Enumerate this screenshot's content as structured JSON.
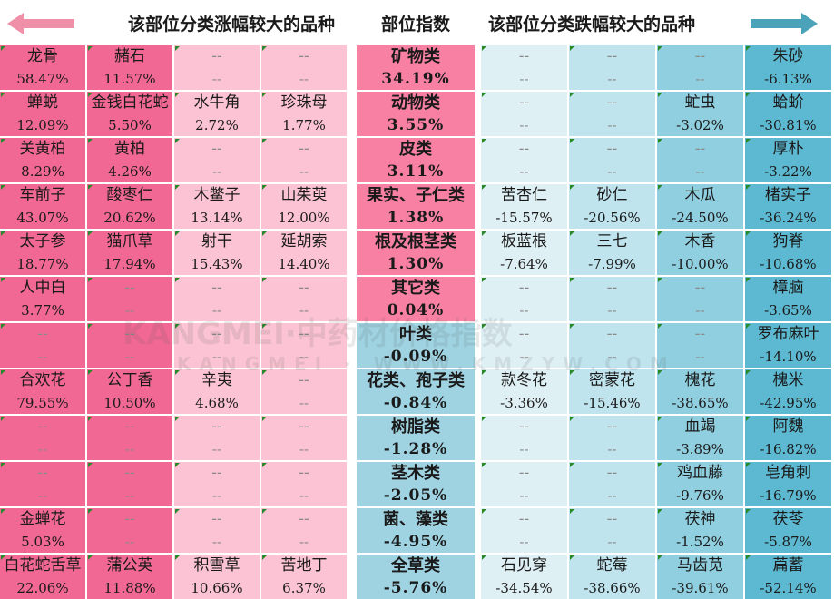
{
  "header": {
    "rise_title": "该部位分类涨幅较大的品种",
    "index_title": "部位指数",
    "fall_title": "该部位分类跌幅较大的品种",
    "rise_arrow_color": "#f08fa8",
    "fall_arrow_color": "#4aa3b8"
  },
  "colors": {
    "rise_dark": "#f26894",
    "rise_light": "#fbc3d3",
    "index_rise": "#f880a3",
    "index_fall": "#9fd3e2",
    "fall_light": "#dff0f5",
    "fall_mid": "#bfe4ee",
    "fall_deep": "#8fcfdf",
    "fall_dark": "#5cb9d1"
  },
  "rows": [
    {
      "index": {
        "name": "矿物类",
        "value": "34.19%"
      },
      "rise": [
        {
          "name": "龙骨",
          "value": "58.47%"
        },
        {
          "name": "赭石",
          "value": "11.57%"
        },
        {
          "name": "--",
          "value": "--"
        },
        {
          "name": "--",
          "value": "--"
        }
      ],
      "fall": [
        {
          "name": "--",
          "value": "--"
        },
        {
          "name": "--",
          "value": "--"
        },
        {
          "name": "--",
          "value": "--"
        },
        {
          "name": "朱砂",
          "value": "-6.13%"
        }
      ]
    },
    {
      "index": {
        "name": "动物类",
        "value": "3.55%"
      },
      "rise": [
        {
          "name": "蝉蜕",
          "value": "12.09%"
        },
        {
          "name": "金钱白花蛇",
          "value": "5.50%"
        },
        {
          "name": "水牛角",
          "value": "2.72%"
        },
        {
          "name": "珍珠母",
          "value": "1.77%"
        }
      ],
      "fall": [
        {
          "name": "--",
          "value": "--"
        },
        {
          "name": "--",
          "value": "--"
        },
        {
          "name": "虻虫",
          "value": "-3.02%"
        },
        {
          "name": "蛤蚧",
          "value": "-30.81%"
        }
      ]
    },
    {
      "index": {
        "name": "皮类",
        "value": "3.11%"
      },
      "rise": [
        {
          "name": "关黄柏",
          "value": "8.29%"
        },
        {
          "name": "黄柏",
          "value": "4.26%"
        },
        {
          "name": "--",
          "value": "--"
        },
        {
          "name": "--",
          "value": "--"
        }
      ],
      "fall": [
        {
          "name": "--",
          "value": "--"
        },
        {
          "name": "--",
          "value": "--"
        },
        {
          "name": "--",
          "value": "--"
        },
        {
          "name": "厚朴",
          "value": "-3.22%"
        }
      ]
    },
    {
      "index": {
        "name": "果实、子仁类",
        "value": "1.38%"
      },
      "rise": [
        {
          "name": "车前子",
          "value": "43.07%"
        },
        {
          "name": "酸枣仁",
          "value": "20.62%"
        },
        {
          "name": "木鳖子",
          "value": "13.14%"
        },
        {
          "name": "山茱萸",
          "value": "12.00%"
        }
      ],
      "fall": [
        {
          "name": "苦杏仁",
          "value": "-15.57%"
        },
        {
          "name": "砂仁",
          "value": "-20.56%"
        },
        {
          "name": "木瓜",
          "value": "-24.50%"
        },
        {
          "name": "楮实子",
          "value": "-36.24%"
        }
      ]
    },
    {
      "index": {
        "name": "根及根茎类",
        "value": "1.30%"
      },
      "rise": [
        {
          "name": "太子参",
          "value": "18.77%"
        },
        {
          "name": "猫爪草",
          "value": "17.94%"
        },
        {
          "name": "射干",
          "value": "15.43%"
        },
        {
          "name": "延胡索",
          "value": "14.40%"
        }
      ],
      "fall": [
        {
          "name": "板蓝根",
          "value": "-7.64%"
        },
        {
          "name": "三七",
          "value": "-7.99%"
        },
        {
          "name": "木香",
          "value": "-10.00%"
        },
        {
          "name": "狗脊",
          "value": "-10.68%"
        }
      ]
    },
    {
      "index": {
        "name": "其它类",
        "value": "0.04%"
      },
      "rise": [
        {
          "name": "人中白",
          "value": "3.77%"
        },
        {
          "name": "--",
          "value": "--"
        },
        {
          "name": "--",
          "value": "--"
        },
        {
          "name": "--",
          "value": "--"
        }
      ],
      "fall": [
        {
          "name": "--",
          "value": "--"
        },
        {
          "name": "--",
          "value": "--"
        },
        {
          "name": "--",
          "value": "--"
        },
        {
          "name": "樟脑",
          "value": "-3.65%"
        }
      ]
    },
    {
      "index": {
        "name": "叶类",
        "value": "-0.09%"
      },
      "rise": [
        {
          "name": "--",
          "value": "--"
        },
        {
          "name": "--",
          "value": "--"
        },
        {
          "name": "--",
          "value": "--"
        },
        {
          "name": "--",
          "value": "--"
        }
      ],
      "fall": [
        {
          "name": "--",
          "value": "--"
        },
        {
          "name": "--",
          "value": "--"
        },
        {
          "name": "--",
          "value": "--"
        },
        {
          "name": "罗布麻叶",
          "value": "-14.10%"
        }
      ]
    },
    {
      "index": {
        "name": "花类、孢子类",
        "value": "-0.84%"
      },
      "rise": [
        {
          "name": "合欢花",
          "value": "79.55%"
        },
        {
          "name": "公丁香",
          "value": "10.50%"
        },
        {
          "name": "辛夷",
          "value": "4.68%"
        },
        {
          "name": "--",
          "value": "--"
        }
      ],
      "fall": [
        {
          "name": "款冬花",
          "value": "-3.36%"
        },
        {
          "name": "密蒙花",
          "value": "-15.46%"
        },
        {
          "name": "槐花",
          "value": "-38.65%"
        },
        {
          "name": "槐米",
          "value": "-42.95%"
        }
      ]
    },
    {
      "index": {
        "name": "树脂类",
        "value": "-1.28%"
      },
      "rise": [
        {
          "name": "--",
          "value": "--"
        },
        {
          "name": "--",
          "value": "--"
        },
        {
          "name": "--",
          "value": "--"
        },
        {
          "name": "--",
          "value": "--"
        }
      ],
      "fall": [
        {
          "name": "--",
          "value": "--"
        },
        {
          "name": "--",
          "value": "--"
        },
        {
          "name": "血竭",
          "value": "-3.89%"
        },
        {
          "name": "阿魏",
          "value": "-16.82%"
        }
      ]
    },
    {
      "index": {
        "name": "茎木类",
        "value": "-2.05%"
      },
      "rise": [
        {
          "name": "--",
          "value": "--"
        },
        {
          "name": "--",
          "value": "--"
        },
        {
          "name": "--",
          "value": "--"
        },
        {
          "name": "--",
          "value": "--"
        }
      ],
      "fall": [
        {
          "name": "--",
          "value": "--"
        },
        {
          "name": "--",
          "value": "--"
        },
        {
          "name": "鸡血藤",
          "value": "-9.76%"
        },
        {
          "name": "皂角刺",
          "value": "-16.79%"
        }
      ]
    },
    {
      "index": {
        "name": "菌、藻类",
        "value": "-4.95%"
      },
      "rise": [
        {
          "name": "金蝉花",
          "value": "5.03%"
        },
        {
          "name": "--",
          "value": "--"
        },
        {
          "name": "--",
          "value": "--"
        },
        {
          "name": "--",
          "value": "--"
        }
      ],
      "fall": [
        {
          "name": "--",
          "value": "--"
        },
        {
          "name": "--",
          "value": "--"
        },
        {
          "name": "茯神",
          "value": "-1.52%"
        },
        {
          "name": "茯苓",
          "value": "-5.87%"
        }
      ]
    },
    {
      "index": {
        "name": "全草类",
        "value": "-5.76%"
      },
      "rise": [
        {
          "name": "白花蛇舌草",
          "value": "22.06%"
        },
        {
          "name": "蒲公英",
          "value": "11.88%"
        },
        {
          "name": "积雪草",
          "value": "10.66%"
        },
        {
          "name": "苦地丁",
          "value": "6.37%"
        }
      ],
      "fall": [
        {
          "name": "石见穿",
          "value": "-34.54%"
        },
        {
          "name": "蛇莓",
          "value": "-38.66%"
        },
        {
          "name": "马齿苋",
          "value": "-39.61%"
        },
        {
          "name": "萹蓄",
          "value": "-52.14%"
        }
      ]
    }
  ],
  "watermark": {
    "line1": "KANGMEI·中药材价格指数",
    "line2": "KANGMEI · WWW.KMZYW.COM"
  }
}
